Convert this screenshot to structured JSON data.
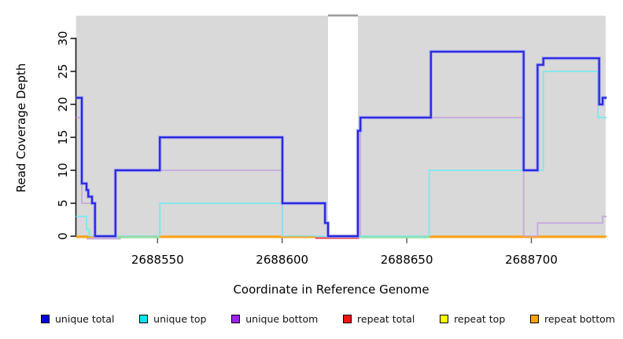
{
  "chart_data": {
    "type": "line",
    "subtype": "step-coverage-plot",
    "title": "",
    "xlabel": "Coordinate in Reference Genome",
    "ylabel": "Read Coverage Depth",
    "xlim": [
      2688517.3,
      2688730.2
    ],
    "ylim": [
      0,
      33
    ],
    "x_ticks": [
      2688550,
      2688600,
      2688650,
      2688700
    ],
    "y_ticks": [
      0,
      5,
      10,
      15,
      20,
      25,
      30
    ],
    "grid": false,
    "legend_position": "bottom",
    "colors": {
      "band": "#D9D9D9",
      "gap_cap": "#9A9A9A",
      "y_axis": "#1a1a1a",
      "x_tick": "#555555",
      "blue_core": "#2828DF",
      "blue_halo": "#A6A6F0",
      "cyan_line": "#7BE8F0",
      "purple_line": "#C6A9DF",
      "red_line": "#E8333D",
      "yellow_line": "#F2F23C",
      "orange_line": "#FFA51F",
      "green_blend": "#93DFA2",
      "lavender_blend": "#C9ACDF"
    },
    "coverage_bands": [
      {
        "from": 2688517.3,
        "to": 2688618.4
      },
      {
        "from": 2688630.4,
        "to": 2688729.8
      }
    ],
    "gap_cap": {
      "from": 2688618.4,
      "to": 2688630.4
    },
    "series": [
      {
        "name": "unique total",
        "color_key": "blue_core",
        "halo_key": "blue_halo",
        "points": [
          [
            2688517.3,
            21
          ],
          [
            2688519.6,
            8
          ],
          [
            2688521.5,
            7
          ],
          [
            2688522.2,
            6
          ],
          [
            2688523.7,
            5
          ],
          [
            2688524.9,
            0
          ],
          [
            2688533.1,
            10
          ],
          [
            2688550.9,
            15
          ],
          [
            2688600.1,
            5
          ],
          [
            2688617.2,
            2
          ],
          [
            2688618.4,
            0
          ],
          [
            2688630.4,
            16
          ],
          [
            2688631.4,
            18
          ],
          [
            2688659.7,
            28
          ],
          [
            2688696.9,
            10
          ],
          [
            2688702.5,
            26
          ],
          [
            2688704.8,
            27
          ],
          [
            2688727.2,
            20
          ],
          [
            2688728.6,
            21
          ],
          [
            2688730.2,
            21
          ]
        ]
      },
      {
        "name": "unique top",
        "color_key": "cyan_line",
        "points": [
          [
            2688517.3,
            3
          ],
          [
            2688521.5,
            1
          ],
          [
            2688522.6,
            0
          ],
          [
            2688550.9,
            5
          ],
          [
            2688600.0,
            0
          ],
          [
            2688659.0,
            10
          ],
          [
            2688704.8,
            25
          ],
          [
            2688726.7,
            18
          ],
          [
            2688730.2,
            18
          ]
        ]
      },
      {
        "name": "unique bottom",
        "color_key": "purple_line",
        "points": [
          [
            2688517.3,
            18
          ],
          [
            2688519.6,
            5
          ],
          [
            2688524.9,
            0
          ],
          [
            2688533.1,
            10
          ],
          [
            2688600.1,
            0
          ],
          [
            2688631.4,
            18
          ],
          [
            2688696.9,
            0
          ],
          [
            2688702.5,
            2
          ],
          [
            2688728.6,
            3
          ],
          [
            2688730.2,
            3
          ]
        ]
      },
      {
        "name": "repeat total",
        "color_key": "red_line",
        "points": [
          [
            2688517.3,
            0
          ],
          [
            2688730.2,
            0
          ]
        ]
      },
      {
        "name": "repeat top",
        "color_key": "yellow_line",
        "points": [
          [
            2688517.3,
            0
          ],
          [
            2688730.2,
            0
          ]
        ]
      },
      {
        "name": "repeat bottom",
        "color_key": "orange_line",
        "points": [
          [
            2688517.3,
            0
          ],
          [
            2688730.2,
            0
          ]
        ]
      }
    ],
    "baseline_overlays": [
      {
        "color_key": "orange_line",
        "from": 2688517.3,
        "to": 2688613.3,
        "dy": 1.4
      },
      {
        "color_key": "orange_line",
        "from": 2688658.8,
        "to": 2688729.8,
        "dy": 1.4
      },
      {
        "color_key": "lavender_blend",
        "from": 2688521.5,
        "to": 2688535.2,
        "dy": 3.2
      },
      {
        "color_key": "green_blend",
        "from": 2688533.1,
        "to": 2688550.9,
        "dy": 1.6
      },
      {
        "color_key": "green_blend",
        "from": 2688630.4,
        "to": 2688658.8,
        "dy": 1.6
      },
      {
        "color_key": "red_line",
        "from": 2688613.3,
        "to": 2688630.8,
        "dy": 2.4
      }
    ],
    "legend": [
      {
        "label": "unique total",
        "swatch": "#0000E8"
      },
      {
        "label": "unique top",
        "swatch": "#00E4EE"
      },
      {
        "label": "unique bottom",
        "swatch": "#A020F0"
      },
      {
        "label": "repeat total",
        "swatch": "#FF1111"
      },
      {
        "label": "repeat top",
        "swatch": "#FFFF00"
      },
      {
        "label": "repeat bottom",
        "swatch": "#FFA500"
      }
    ]
  }
}
